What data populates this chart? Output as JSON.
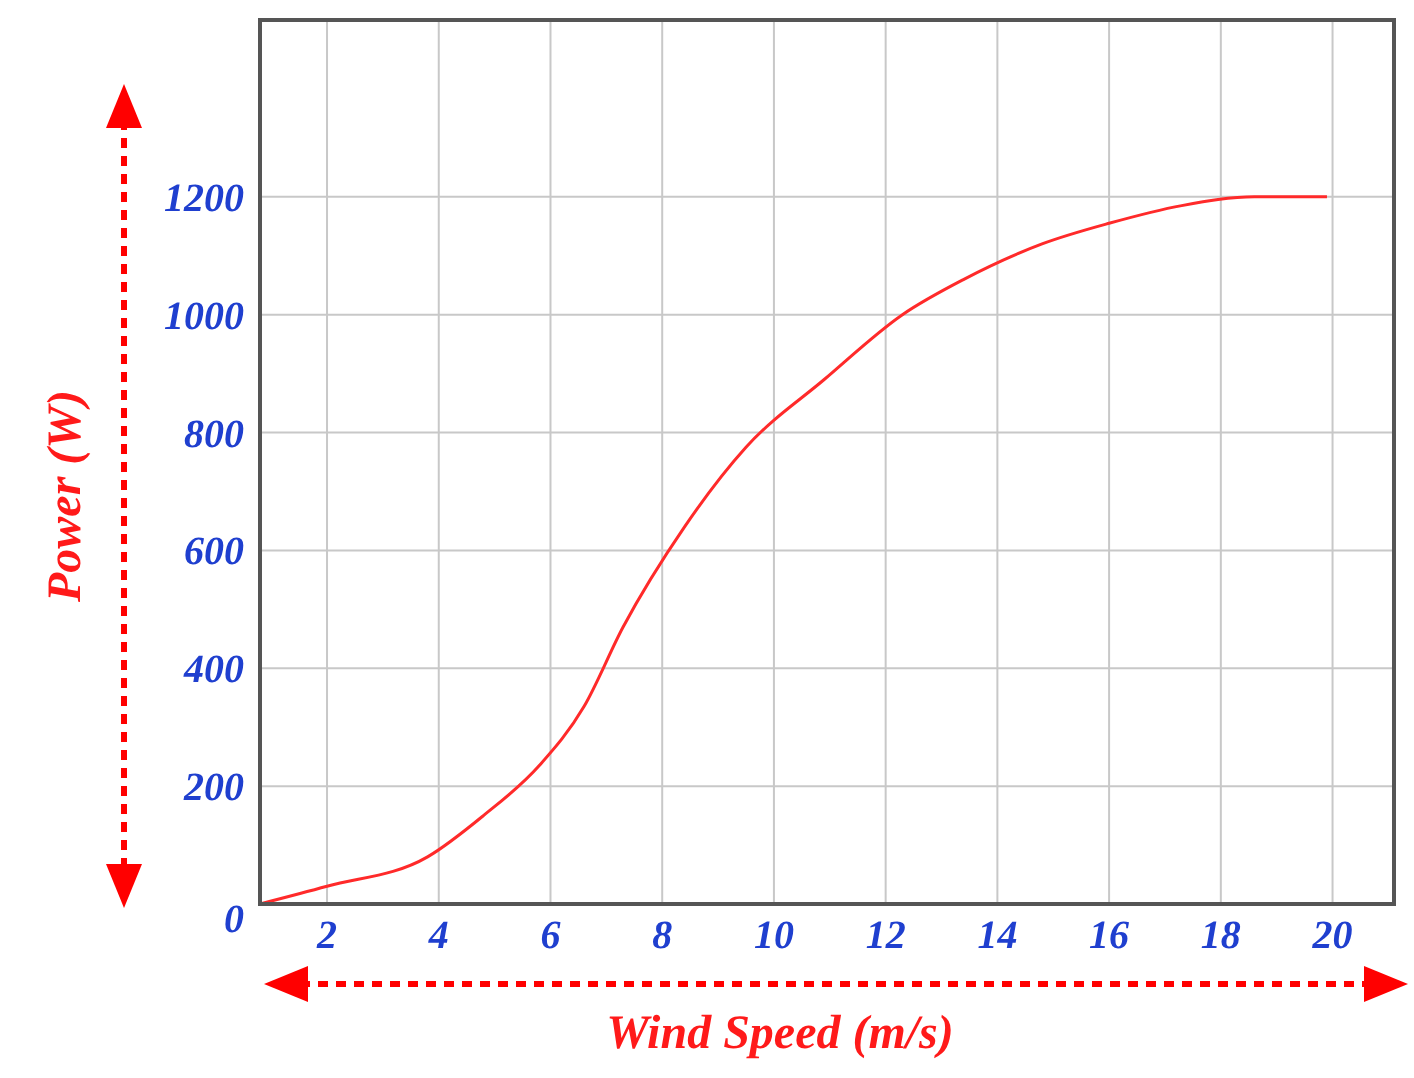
{
  "chart_data": {
    "type": "line",
    "xlabel": "Wind Speed (m/s)",
    "ylabel": "Power (W)",
    "xlim": [
      0.8,
      21.1
    ],
    "ylim": [
      0,
      1500
    ],
    "xticks": [
      2,
      4,
      6,
      8,
      10,
      12,
      14,
      16,
      18,
      20
    ],
    "yticks": [
      0,
      200,
      400,
      600,
      800,
      1000,
      1200
    ],
    "grid": true,
    "marker": "none",
    "line_style": "solid",
    "series": [
      {
        "color": "#ff2a2a",
        "x": [
          0.8,
          2,
          3.8,
          4.8,
          5.8,
          6.6,
          7.3,
          8.4,
          9.5,
          10.9,
          12.3,
          13.4,
          14.8,
          16,
          17.3,
          18.6,
          19.9
        ],
        "values": [
          0,
          30,
          80,
          150,
          235,
          335,
          470,
          640,
          775,
          890,
          1000,
          1060,
          1120,
          1155,
          1185,
          1200,
          1200
        ]
      }
    ]
  }
}
